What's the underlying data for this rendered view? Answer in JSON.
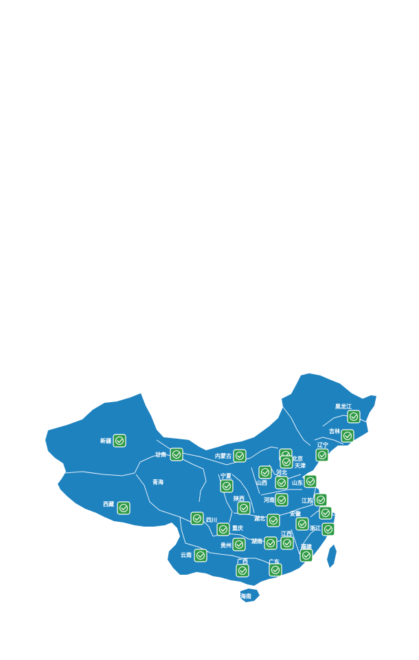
{
  "map": {
    "land_color": "#1e82bf",
    "border_color": "#e8f1f8",
    "marker_color": "#2e9a43",
    "marker_icon": "green-check-badge-icon",
    "provinces": [
      {
        "id": "xinjiang",
        "label": "新疆"
      },
      {
        "id": "xizang",
        "label": "西藏"
      },
      {
        "id": "qinghai",
        "label": "青海"
      },
      {
        "id": "gansu",
        "label": "甘肃"
      },
      {
        "id": "neimenggu",
        "label": "内蒙古"
      },
      {
        "id": "heilongjiang",
        "label": "黑龙江"
      },
      {
        "id": "jilin",
        "label": "吉林"
      },
      {
        "id": "liaoning",
        "label": "辽宁"
      },
      {
        "id": "beijing",
        "label": "北京"
      },
      {
        "id": "tianjin",
        "label": "天津"
      },
      {
        "id": "hebei",
        "label": "河北"
      },
      {
        "id": "shanxi",
        "label": "山西"
      },
      {
        "id": "shandong",
        "label": "山东"
      },
      {
        "id": "ningxia",
        "label": "宁夏"
      },
      {
        "id": "shaanxi",
        "label": "陕西"
      },
      {
        "id": "henan",
        "label": "河南"
      },
      {
        "id": "jiangsu",
        "label": "江苏"
      },
      {
        "id": "shanghai",
        "label": "上海"
      },
      {
        "id": "anhui",
        "label": "安徽"
      },
      {
        "id": "hubei",
        "label": "湖北"
      },
      {
        "id": "sichuan",
        "label": "四川"
      },
      {
        "id": "chongqing",
        "label": "重庆"
      },
      {
        "id": "zhejiang",
        "label": "浙江"
      },
      {
        "id": "jiangxi",
        "label": "江西"
      },
      {
        "id": "hunan",
        "label": "湖南"
      },
      {
        "id": "guizhou",
        "label": "贵州"
      },
      {
        "id": "yunnan",
        "label": "云南"
      },
      {
        "id": "guangxi",
        "label": "广西"
      },
      {
        "id": "guangdong",
        "label": "广东"
      },
      {
        "id": "fujian",
        "label": "福建"
      },
      {
        "id": "hainan",
        "label": "海南"
      }
    ]
  }
}
